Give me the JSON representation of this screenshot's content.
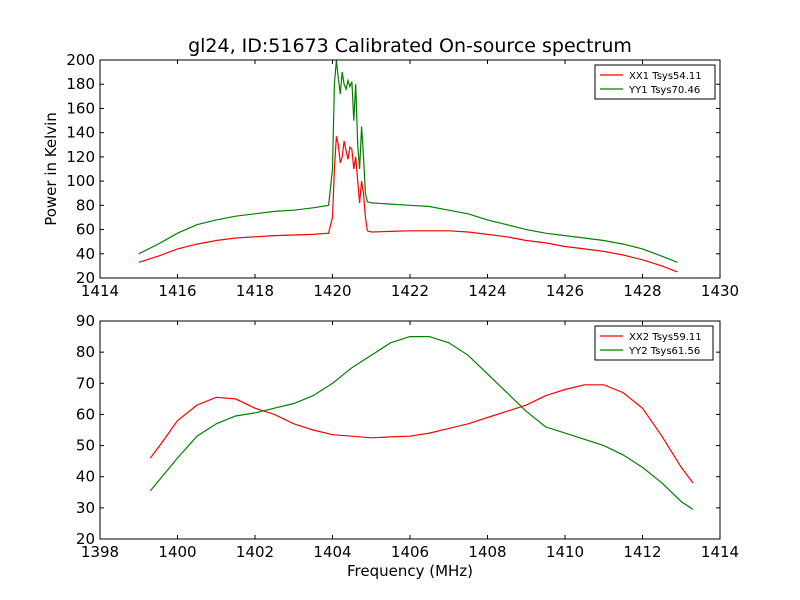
{
  "figure": {
    "title": "gl24, ID:51673 Calibrated On-source spectrum",
    "xlabel": "Frequency (MHz)"
  },
  "colors": {
    "xx": "#ff0000",
    "yy": "#008000",
    "axes": "#000000"
  },
  "chart_data": [
    {
      "type": "line",
      "title": "gl24, ID:51673 Calibrated On-source spectrum",
      "xlabel": "",
      "ylabel": "Power in Kelvin",
      "xlim": [
        1414,
        1430
      ],
      "ylim": [
        20,
        200
      ],
      "xticks": [
        1414,
        1416,
        1418,
        1420,
        1422,
        1424,
        1426,
        1428,
        1430
      ],
      "yticks": [
        20,
        40,
        60,
        80,
        100,
        120,
        140,
        160,
        180,
        200
      ],
      "legend": "top-right",
      "grid": false,
      "series": [
        {
          "name": "XX1 Tsys54.11",
          "color": "#ff0000",
          "points": [
            [
              1415.0,
              33
            ],
            [
              1415.5,
              38
            ],
            [
              1416.0,
              44
            ],
            [
              1416.5,
              48
            ],
            [
              1417.0,
              51
            ],
            [
              1417.5,
              53
            ],
            [
              1418.0,
              54
            ],
            [
              1418.5,
              55
            ],
            [
              1419.0,
              55.5
            ],
            [
              1419.5,
              56
            ],
            [
              1419.9,
              57
            ],
            [
              1420.0,
              70
            ],
            [
              1420.05,
              110
            ],
            [
              1420.1,
              137
            ],
            [
              1420.15,
              130
            ],
            [
              1420.2,
              115
            ],
            [
              1420.25,
              120
            ],
            [
              1420.3,
              133
            ],
            [
              1420.35,
              125
            ],
            [
              1420.4,
              118
            ],
            [
              1420.45,
              128
            ],
            [
              1420.5,
              126
            ],
            [
              1420.55,
              110
            ],
            [
              1420.6,
              120
            ],
            [
              1420.65,
              100
            ],
            [
              1420.7,
              82
            ],
            [
              1420.75,
              100
            ],
            [
              1420.8,
              90
            ],
            [
              1420.85,
              70
            ],
            [
              1420.9,
              59
            ],
            [
              1421.0,
              58
            ],
            [
              1421.5,
              58.5
            ],
            [
              1422.0,
              59
            ],
            [
              1422.5,
              59
            ],
            [
              1423.0,
              59
            ],
            [
              1423.5,
              58
            ],
            [
              1424.0,
              56
            ],
            [
              1424.5,
              54
            ],
            [
              1425.0,
              51
            ],
            [
              1425.5,
              49
            ],
            [
              1426.0,
              46
            ],
            [
              1426.5,
              44
            ],
            [
              1427.0,
              42
            ],
            [
              1427.5,
              39
            ],
            [
              1428.0,
              35
            ],
            [
              1428.5,
              30
            ],
            [
              1428.9,
              25
            ]
          ]
        },
        {
          "name": "YY1 Tsys70.46",
          "color": "#008000",
          "points": [
            [
              1415.0,
              40
            ],
            [
              1415.5,
              48
            ],
            [
              1416.0,
              57
            ],
            [
              1416.5,
              64
            ],
            [
              1417.0,
              68
            ],
            [
              1417.5,
              71
            ],
            [
              1418.0,
              73
            ],
            [
              1418.5,
              75
            ],
            [
              1419.0,
              76
            ],
            [
              1419.5,
              78
            ],
            [
              1419.9,
              80
            ],
            [
              1420.0,
              110
            ],
            [
              1420.05,
              180
            ],
            [
              1420.1,
              200
            ],
            [
              1420.15,
              185
            ],
            [
              1420.2,
              172
            ],
            [
              1420.25,
              190
            ],
            [
              1420.3,
              180
            ],
            [
              1420.35,
              176
            ],
            [
              1420.4,
              183
            ],
            [
              1420.45,
              178
            ],
            [
              1420.5,
              182
            ],
            [
              1420.55,
              150
            ],
            [
              1420.6,
              180
            ],
            [
              1420.65,
              130
            ],
            [
              1420.7,
              110
            ],
            [
              1420.75,
              145
            ],
            [
              1420.8,
              120
            ],
            [
              1420.85,
              90
            ],
            [
              1420.9,
              83
            ],
            [
              1421.0,
              82
            ],
            [
              1421.5,
              81
            ],
            [
              1422.0,
              80
            ],
            [
              1422.5,
              79
            ],
            [
              1423.0,
              76
            ],
            [
              1423.5,
              73
            ],
            [
              1424.0,
              68
            ],
            [
              1424.5,
              64
            ],
            [
              1425.0,
              60
            ],
            [
              1425.5,
              57
            ],
            [
              1426.0,
              55
            ],
            [
              1426.5,
              53
            ],
            [
              1427.0,
              51
            ],
            [
              1427.5,
              48
            ],
            [
              1428.0,
              44
            ],
            [
              1428.5,
              38
            ],
            [
              1428.9,
              33
            ]
          ]
        }
      ]
    },
    {
      "type": "line",
      "title": "",
      "xlabel": "Frequency (MHz)",
      "ylabel": "",
      "xlim": [
        1398,
        1414
      ],
      "ylim": [
        20,
        90
      ],
      "xticks": [
        1398,
        1400,
        1402,
        1404,
        1406,
        1408,
        1410,
        1412,
        1414
      ],
      "yticks": [
        20,
        30,
        40,
        50,
        60,
        70,
        80,
        90
      ],
      "legend": "top-right",
      "grid": false,
      "series": [
        {
          "name": "XX2 Tsys59.11",
          "color": "#ff0000",
          "points": [
            [
              1399.3,
              46
            ],
            [
              1399.6,
              51
            ],
            [
              1400.0,
              58
            ],
            [
              1400.5,
              63
            ],
            [
              1401.0,
              65.5
            ],
            [
              1401.5,
              65
            ],
            [
              1402.0,
              62
            ],
            [
              1402.5,
              60
            ],
            [
              1403.0,
              57
            ],
            [
              1403.5,
              55
            ],
            [
              1404.0,
              53.5
            ],
            [
              1404.5,
              53
            ],
            [
              1405.0,
              52.5
            ],
            [
              1405.5,
              52.8
            ],
            [
              1406.0,
              53
            ],
            [
              1406.5,
              54
            ],
            [
              1407.0,
              55.5
            ],
            [
              1407.5,
              57
            ],
            [
              1408.0,
              59
            ],
            [
              1408.5,
              61
            ],
            [
              1409.0,
              63
            ],
            [
              1409.5,
              66
            ],
            [
              1410.0,
              68
            ],
            [
              1410.5,
              69.5
            ],
            [
              1411.0,
              69.5
            ],
            [
              1411.5,
              67
            ],
            [
              1412.0,
              62
            ],
            [
              1412.5,
              53
            ],
            [
              1413.0,
              43
            ],
            [
              1413.3,
              38
            ]
          ]
        },
        {
          "name": "YY2 Tsys61.56",
          "color": "#008000",
          "points": [
            [
              1399.3,
              35.5
            ],
            [
              1399.6,
              40
            ],
            [
              1400.0,
              46
            ],
            [
              1400.5,
              53
            ],
            [
              1401.0,
              57
            ],
            [
              1401.5,
              59.5
            ],
            [
              1402.0,
              60.5
            ],
            [
              1402.5,
              62
            ],
            [
              1403.0,
              63.5
            ],
            [
              1403.5,
              66
            ],
            [
              1404.0,
              70
            ],
            [
              1404.5,
              75
            ],
            [
              1405.0,
              79
            ],
            [
              1405.5,
              83
            ],
            [
              1406.0,
              85
            ],
            [
              1406.5,
              85
            ],
            [
              1407.0,
              83
            ],
            [
              1407.5,
              79
            ],
            [
              1408.0,
              73
            ],
            [
              1408.5,
              67
            ],
            [
              1409.0,
              61
            ],
            [
              1409.5,
              56
            ],
            [
              1410.0,
              54
            ],
            [
              1410.5,
              52
            ],
            [
              1411.0,
              50
            ],
            [
              1411.5,
              47
            ],
            [
              1412.0,
              43
            ],
            [
              1412.5,
              38
            ],
            [
              1413.0,
              32
            ],
            [
              1413.3,
              29.5
            ]
          ]
        }
      ]
    }
  ]
}
